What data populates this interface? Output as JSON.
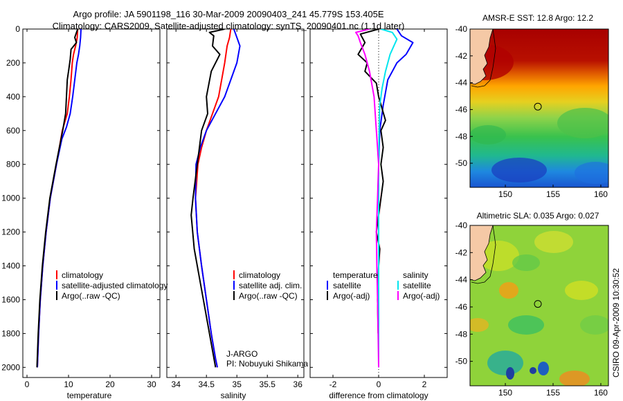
{
  "header": {
    "line1": "Argo profile: JA 5901198_116 30-Mar-2009 20090403_241 45.779S 153.405E",
    "line2": "Climatology: CARS2009. Satellite-adjusted climatology: synTS_20090401.nc (1.1d later)"
  },
  "colors": {
    "climatology": "#ff0000",
    "satellite": "#0000ff",
    "argo": "#000000",
    "sat_diff": "#00e5ee",
    "argo_sal_diff": "#ff00ff",
    "land": "#f5c9a6"
  },
  "chart_data": [
    {
      "type": "line",
      "title": "",
      "xlabel": "temperature",
      "ylabel": "",
      "xlim": [
        -1,
        32
      ],
      "ylim": [
        2060,
        0
      ],
      "x_ticks": [
        "0",
        "10",
        "20",
        "30"
      ],
      "y_ticks": [
        "0",
        "200",
        "400",
        "600",
        "800",
        "1000",
        "1200",
        "1400",
        "1600",
        "1800",
        "2000"
      ],
      "legend": [
        "climatology",
        "satellite-adjusted climatology",
        "Argo(..raw -QC)"
      ],
      "series": [
        {
          "name": "climatology",
          "color": "#ff0000",
          "x": [
            12.2,
            12.1,
            11.7,
            11.2,
            10.9,
            10.6,
            10.2,
            9.7,
            8.5,
            7.1,
            5.6,
            4.6,
            3.8,
            3.2,
            2.8,
            2.5
          ],
          "y": [
            0,
            50,
            100,
            150,
            200,
            300,
            400,
            500,
            600,
            800,
            1000,
            1200,
            1400,
            1600,
            1800,
            2000
          ]
        },
        {
          "name": "satellite-adjusted climatology",
          "color": "#0000ff",
          "x": [
            13.0,
            12.9,
            12.7,
            12.4,
            12.0,
            11.5,
            11.0,
            10.4,
            9.5,
            8.4,
            7.1,
            5.6,
            4.6,
            3.8,
            3.2,
            2.8,
            2.5
          ],
          "y": [
            0,
            50,
            100,
            150,
            200,
            300,
            400,
            500,
            580,
            650,
            800,
            1000,
            1200,
            1400,
            1600,
            1800,
            2000
          ]
        },
        {
          "name": "Argo(..raw -QC)",
          "color": "#000000",
          "x": [
            12.2,
            11.5,
            11.9,
            10.6,
            10.4,
            10.0,
            9.7,
            9.5,
            9.3,
            8.6,
            7.0,
            5.5,
            4.5,
            3.7,
            3.1,
            2.7,
            2.4
          ],
          "y": [
            0,
            50,
            80,
            120,
            180,
            250,
            300,
            400,
            500,
            600,
            800,
            1000,
            1200,
            1400,
            1600,
            1800,
            2000
          ]
        }
      ]
    },
    {
      "type": "line",
      "title": "",
      "xlabel": "salinity",
      "ylabel": "",
      "xlim": [
        33.85,
        36.1
      ],
      "ylim": [
        2060,
        0
      ],
      "x_ticks": [
        "34",
        "34.5",
        "35",
        "35.5",
        "36"
      ],
      "legend": [
        "climatology",
        "satellite adj. clim.",
        "Argo(..raw -QC)"
      ],
      "annotation": [
        "J-ARGO",
        "PI: Nobuyuki Shikama"
      ],
      "series": [
        {
          "name": "climatology",
          "color": "#ff0000",
          "x": [
            34.9,
            34.88,
            34.84,
            34.8,
            34.75,
            34.7,
            34.6,
            34.5,
            34.42,
            34.36,
            34.32,
            34.35,
            34.42,
            34.5,
            34.58,
            34.65,
            34.68
          ],
          "y": [
            0,
            50,
            100,
            200,
            300,
            400,
            500,
            600,
            700,
            800,
            1000,
            1200,
            1400,
            1600,
            1800,
            1950,
            2000
          ]
        },
        {
          "name": "satellite adj. clim.",
          "color": "#0000ff",
          "x": [
            34.95,
            35.0,
            35.05,
            35.0,
            34.9,
            34.8,
            34.65,
            34.5,
            34.4,
            34.33,
            34.32,
            34.35,
            34.42,
            34.5,
            34.58,
            34.65,
            34.68
          ],
          "y": [
            0,
            50,
            100,
            200,
            300,
            400,
            500,
            600,
            700,
            800,
            1000,
            1200,
            1400,
            1600,
            1800,
            1950,
            2000
          ]
        },
        {
          "name": "Argo(..raw -QC)",
          "color": "#000000",
          "x": [
            34.8,
            34.55,
            34.62,
            34.6,
            34.72,
            34.58,
            34.5,
            34.52,
            34.42,
            34.35,
            34.28,
            34.25,
            34.3,
            34.4,
            34.5,
            34.6,
            34.65
          ],
          "y": [
            0,
            20,
            40,
            100,
            150,
            250,
            400,
            500,
            600,
            800,
            1000,
            1100,
            1300,
            1500,
            1700,
            1900,
            2000
          ]
        }
      ]
    },
    {
      "type": "line",
      "title": "",
      "xlabel": "difference from climatology",
      "ylabel": "",
      "xlim": [
        -3,
        3
      ],
      "ylim": [
        2060,
        0
      ],
      "x_ticks": [
        "-2",
        "0",
        "2"
      ],
      "legend": [
        "temperature",
        "satellite",
        "Argo(-adj)",
        "salinity",
        "satellite",
        "Argo(-adj)"
      ],
      "series": [
        {
          "name": "temperature satellite",
          "color": "#0000ff",
          "x": [
            0.8,
            1.0,
            1.5,
            1.2,
            0.8,
            0.6,
            0.4,
            0.2,
            0.05,
            0.0,
            0.0
          ],
          "y": [
            0,
            40,
            80,
            150,
            200,
            250,
            300,
            450,
            600,
            800,
            2000
          ]
        },
        {
          "name": "temperature Argo(-adj)",
          "color": "#000000",
          "x": [
            0.0,
            -0.8,
            -0.6,
            -0.9,
            -0.5,
            -0.6,
            -0.1,
            0.0,
            0.3,
            0.1,
            0.2,
            0.1,
            0.2,
            0.1,
            0.0,
            -0.1,
            0.05,
            0.0,
            -0.05,
            -0.02
          ],
          "y": [
            0,
            30,
            80,
            150,
            200,
            250,
            320,
            400,
            540,
            600,
            700,
            800,
            900,
            1000,
            1100,
            1200,
            1300,
            1400,
            1600,
            1800
          ]
        },
        {
          "name": "salinity satellite",
          "color": "#00e5ee",
          "x": [
            0.1,
            0.6,
            0.8,
            0.5,
            0.3,
            0.15,
            0.05,
            0.02,
            0.0,
            0.0,
            0.0
          ],
          "y": [
            0,
            20,
            60,
            150,
            250,
            350,
            450,
            600,
            800,
            1200,
            2000
          ]
        },
        {
          "name": "salinity Argo(-adj)",
          "color": "#ff00ff",
          "x": [
            -0.4,
            -1.0,
            -0.9,
            -0.8,
            -0.6,
            -0.4,
            -0.2,
            -0.1,
            0.0,
            -0.05,
            -0.1,
            -0.08,
            -0.05,
            -0.02,
            0.0
          ],
          "y": [
            0,
            20,
            40,
            80,
            150,
            250,
            400,
            600,
            800,
            1000,
            1200,
            1400,
            1600,
            1800,
            2000
          ]
        }
      ]
    },
    {
      "type": "heatmap",
      "title": "AMSR-E SST: 12.8 Argo: 12.2",
      "x_ticks": [
        "150",
        "155",
        "160"
      ],
      "y_ticks": [
        "-40",
        "-42",
        "-44",
        "-46",
        "-48",
        "-50"
      ],
      "xlim": [
        146.3,
        160.8
      ],
      "ylim": [
        -51.8,
        -40.0
      ],
      "marker": {
        "lon": 153.405,
        "lat": -45.779
      }
    },
    {
      "type": "heatmap",
      "title": "Altimetric SLA: 0.035 Argo: 0.027",
      "x_ticks": [
        "150",
        "155",
        "160"
      ],
      "y_ticks": [
        "-40",
        "-42",
        "-44",
        "-46",
        "-48",
        "-50"
      ],
      "xlim": [
        146.3,
        160.8
      ],
      "ylim": [
        -51.8,
        -40.0
      ],
      "marker": {
        "lon": 153.405,
        "lat": -45.779
      }
    }
  ],
  "footer": {
    "credit": "CSIRO 09-Apr-2009 10:30:52"
  }
}
